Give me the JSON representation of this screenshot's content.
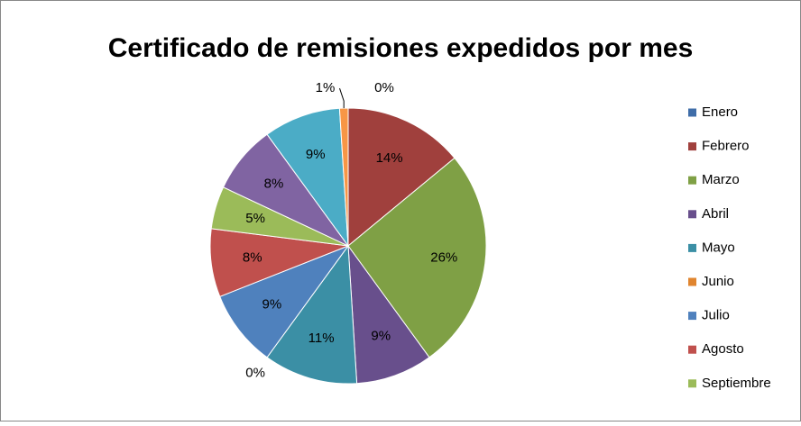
{
  "chart_data": {
    "type": "pie",
    "title": "Certificado de remisiones expedidos por mes",
    "categories": [
      "Enero",
      "Febrero",
      "Marzo",
      "Abril",
      "Mayo",
      "Junio",
      "Julio",
      "Agosto",
      "Septiembre",
      null,
      null,
      null
    ],
    "values": [
      0,
      14,
      26,
      9,
      11,
      0,
      9,
      8,
      5,
      8,
      9,
      1
    ],
    "value_labels": [
      "0%",
      "14%",
      "26%",
      "9%",
      "11%",
      "0%",
      "9%",
      "8%",
      "5%",
      "8%",
      "9%",
      "1%"
    ],
    "colors": [
      "#3f6da8",
      "#a0403d",
      "#7fa045",
      "#684f8c",
      "#3b8fa5",
      "#e0852f",
      "#4f81bd",
      "#c0504d",
      "#9bbb59",
      "#8064a2",
      "#4bacc6",
      "#f79646"
    ],
    "legend": "right"
  }
}
